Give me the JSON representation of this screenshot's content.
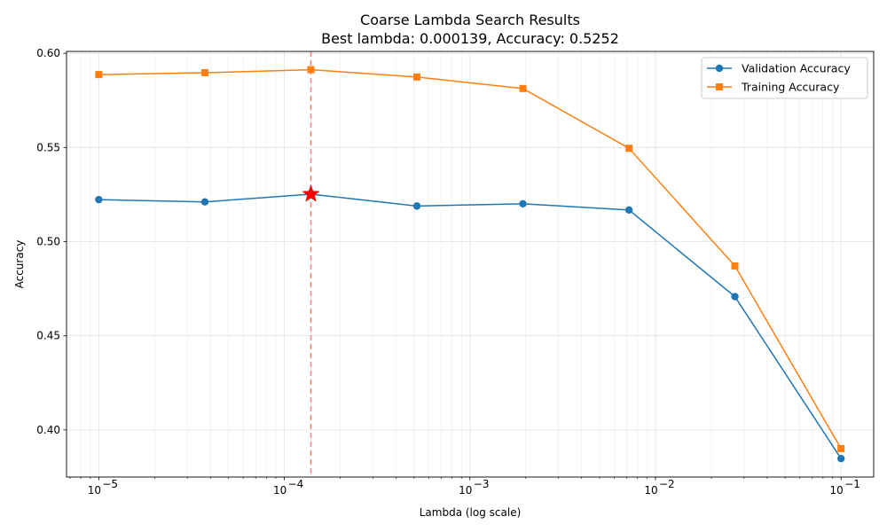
{
  "chart_data": {
    "type": "line",
    "title": "Coarse Lambda Search Results",
    "subtitle": "Best lambda: 0.000139, Accuracy: 0.5252",
    "xlabel": "Lambda (log scale)",
    "ylabel": "Accuracy",
    "x_scale": "log",
    "xlim": [
      6.7e-06,
      0.15
    ],
    "ylim": [
      0.375,
      0.601
    ],
    "x_ticks": [
      {
        "value": 1e-05,
        "base": "10",
        "exp": "−5"
      },
      {
        "value": 0.0001,
        "base": "10",
        "exp": "−4"
      },
      {
        "value": 0.001,
        "base": "10",
        "exp": "−3"
      },
      {
        "value": 0.01,
        "base": "10",
        "exp": "−2"
      },
      {
        "value": 0.1,
        "base": "10",
        "exp": "−1"
      }
    ],
    "y_ticks": [
      "0.40",
      "0.45",
      "0.50",
      "0.55",
      "0.60"
    ],
    "grid": true,
    "legend_position": "top-right",
    "x": [
      1e-05,
      3.73e-05,
      0.000139,
      0.000518,
      0.00193,
      0.0072,
      0.0268,
      0.1
    ],
    "series": [
      {
        "name": "Validation Accuracy",
        "marker": "circle",
        "color": "#1f77b4",
        "values": [
          0.5223,
          0.5211,
          0.5252,
          0.5189,
          0.5201,
          0.5168,
          0.4708,
          0.3848
        ]
      },
      {
        "name": "Training Accuracy",
        "marker": "square",
        "color": "#ff7f0e",
        "values": [
          0.5887,
          0.5897,
          0.5913,
          0.5874,
          0.5813,
          0.5496,
          0.4871,
          0.3901
        ]
      }
    ],
    "best_point": {
      "x": 0.000139,
      "y": 0.5252,
      "marker": "star",
      "color": "#ff0000"
    },
    "best_line": {
      "x": 0.000139,
      "color": "#ff7f7f",
      "style": "dashed"
    }
  }
}
